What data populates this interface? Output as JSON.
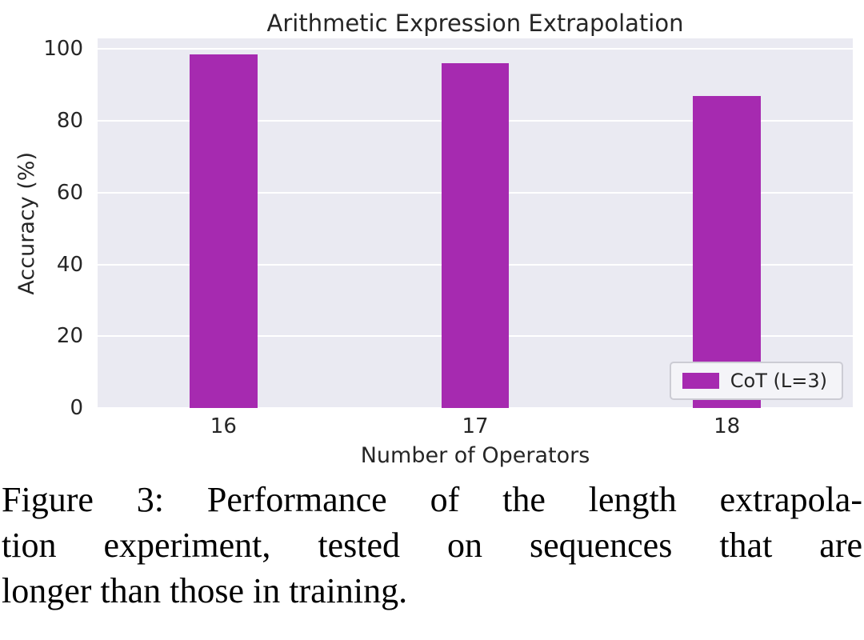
{
  "figure": {
    "caption": "Figure 3: Performance of the length extrapolation experiment, tested on sequences that are longer than those in training.",
    "caption_lines": [
      "Figure 3: Performance of the length extrapola-",
      "tion experiment, tested on sequences that are",
      "longer than those in training."
    ]
  },
  "chart_data": {
    "type": "bar",
    "title": "Arithmetic Expression Extrapolation",
    "xlabel": "Number of Operators",
    "ylabel": "Accuracy (%)",
    "categories": [
      "16",
      "17",
      "18"
    ],
    "series": [
      {
        "name": "CoT (L=3)",
        "values": [
          98.5,
          96,
          87
        ]
      }
    ],
    "legend_position": "lower right",
    "grid": true,
    "ylim": [
      0,
      103
    ],
    "yticks": [
      0,
      20,
      40,
      60,
      80,
      100
    ],
    "bar_color": "#a62ab0",
    "plot_bg": "#eaeaf2",
    "text_color": "#262626",
    "bar_width_frac": 0.27
  }
}
